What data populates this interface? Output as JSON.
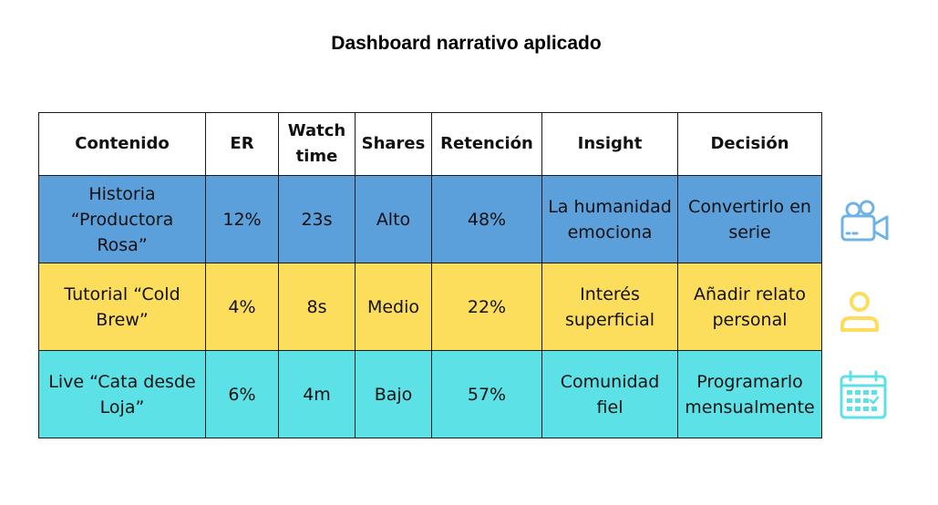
{
  "title": "Dashboard narrativo aplicado",
  "chart_data": {
    "type": "table",
    "title": "Dashboard narrativo aplicado",
    "columns": [
      "Contenido",
      "ER",
      "Watch time",
      "Shares",
      "Retención",
      "Insight",
      "Decisión"
    ],
    "rows": [
      {
        "contenido": "Historia “Productora Rosa”",
        "er": "12%",
        "watch_time": "23s",
        "shares": "Alto",
        "retencion": "48%",
        "insight": "La humanidad emociona",
        "decision": "Convertirlo en serie",
        "color": "#5B9FDB",
        "icon": "video-camera-icon"
      },
      {
        "contenido": "Tutorial “Cold Brew”",
        "er": "4%",
        "watch_time": "8s",
        "shares": "Medio",
        "retencion": "22%",
        "insight": "Interés superficial",
        "decision": "Añadir relato personal",
        "color": "#FDDD5C",
        "icon": "user-icon"
      },
      {
        "contenido": "Live “Cata desde Loja”",
        "er": "6%",
        "watch_time": "4m",
        "shares": "Bajo",
        "retencion": "57%",
        "insight": "Comunidad fiel",
        "decision": "Programarlo mensualmente",
        "color": "#5CE1E6",
        "icon": "calendar-icon"
      }
    ]
  },
  "colors": {
    "row1": "#5B9FDB",
    "row2": "#FDDD5C",
    "row3": "#5CE1E6",
    "icon_blue": "#6FB3E6",
    "icon_yellow": "#FDDD5C",
    "icon_cyan": "#5CE1E6"
  }
}
